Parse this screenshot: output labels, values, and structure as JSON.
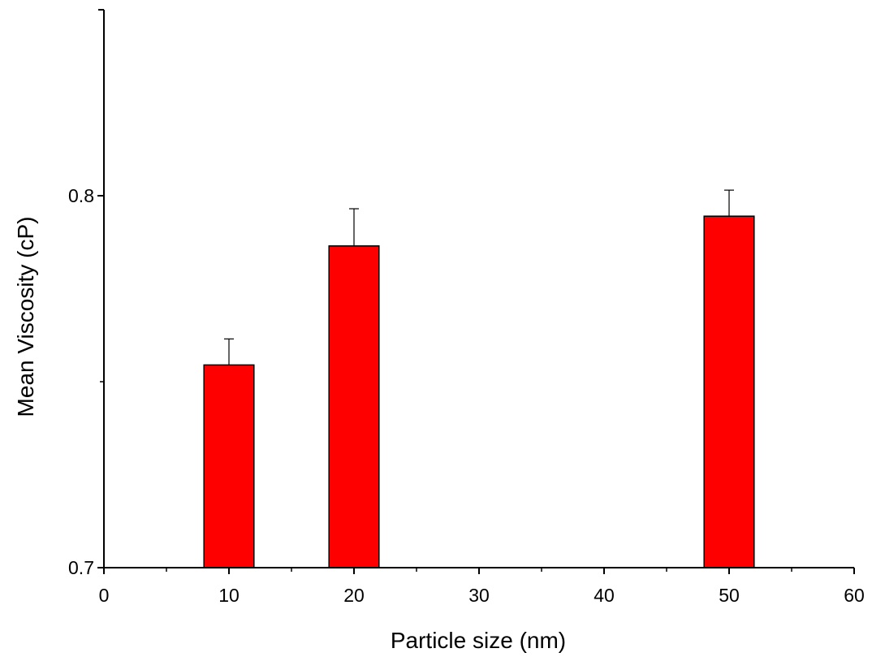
{
  "chart_data": {
    "type": "bar",
    "x": [
      10,
      20,
      50
    ],
    "values": [
      0.7545,
      0.7865,
      0.7945
    ],
    "error_up": [
      0.007,
      0.01,
      0.007
    ],
    "xlabel": "Particle size (nm)",
    "ylabel": "Mean Viscosity (cP)",
    "xlim": [
      0,
      60
    ],
    "ylim": [
      0.7,
      0.85
    ],
    "bar_width": 4,
    "x_ticks": [
      {
        "value": 0,
        "label": "0"
      },
      {
        "value": 10,
        "label": "10"
      },
      {
        "value": 20,
        "label": "20"
      },
      {
        "value": 30,
        "label": "30"
      },
      {
        "value": 40,
        "label": "40"
      },
      {
        "value": 50,
        "label": "50"
      },
      {
        "value": 60,
        "label": "60"
      }
    ],
    "x_minor_ticks": [
      5,
      15,
      25,
      35,
      45,
      55
    ],
    "y_ticks": [
      {
        "value": 0.7,
        "label": "0.7"
      },
      {
        "value": 0.8,
        "label": "0.8"
      }
    ],
    "y_minor_ticks": [
      0.75
    ],
    "bar_color": "#ff0000",
    "grid": false
  }
}
